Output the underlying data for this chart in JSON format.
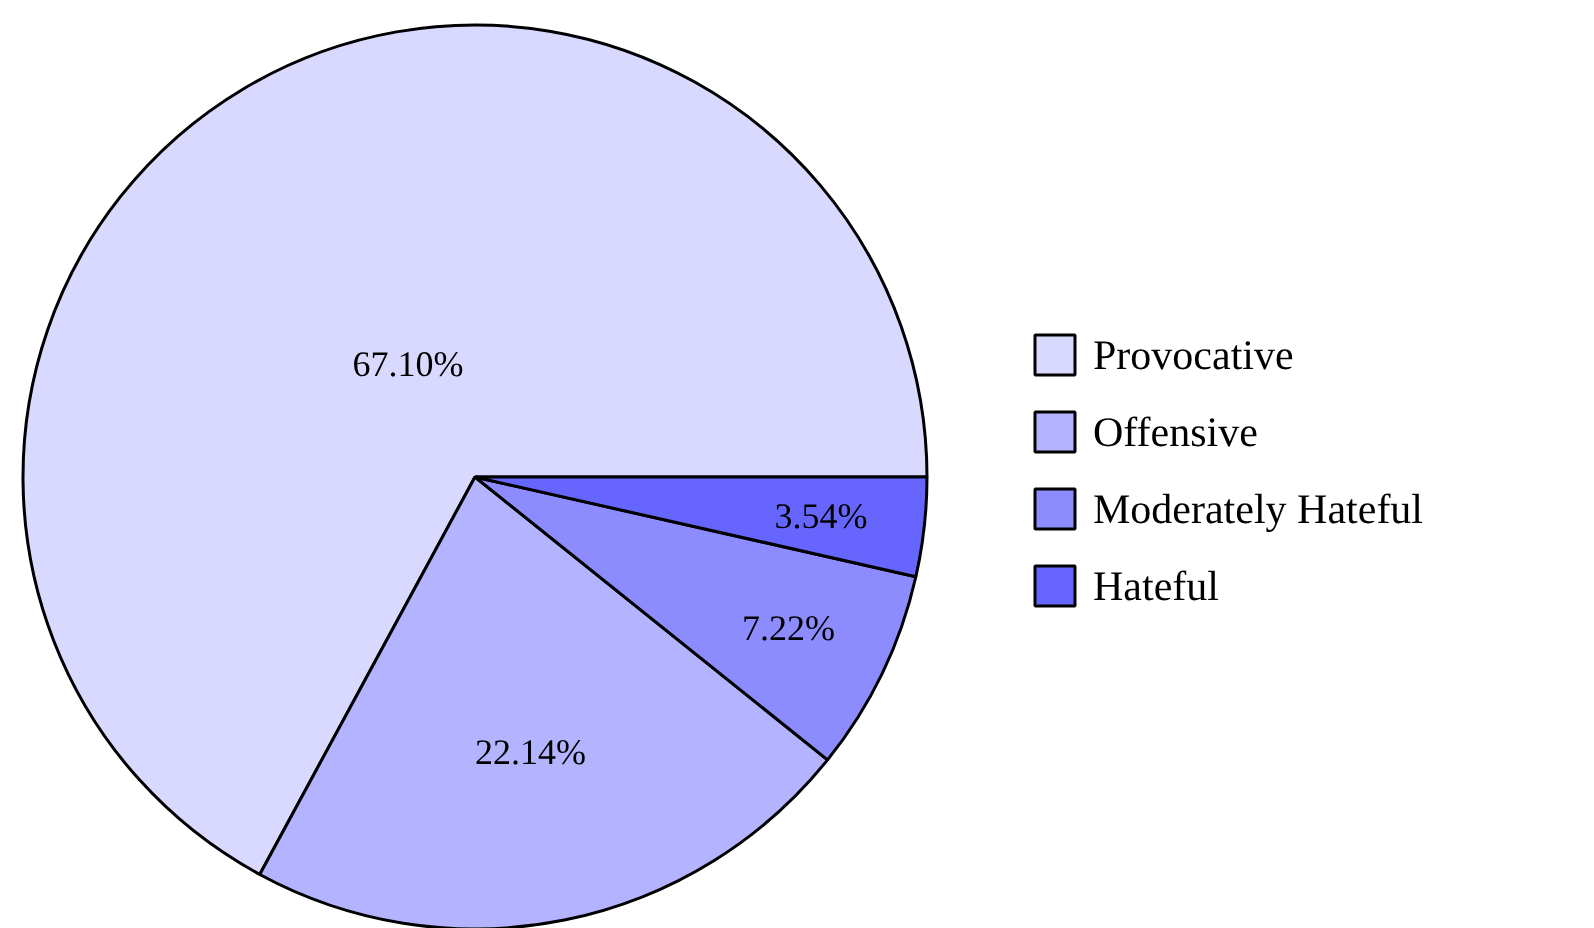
{
  "chart_data": {
    "type": "pie",
    "categories": [
      "Provocative",
      "Offensive",
      "Moderately Hateful",
      "Hateful"
    ],
    "values": [
      67.1,
      22.14,
      7.22,
      3.54
    ],
    "colors": [
      "#d9d9ff",
      "#b3b3ff",
      "#8c8cff",
      "#6666ff"
    ],
    "value_labels": [
      "67.10%",
      "22.14%",
      "7.22%",
      "3.54%"
    ],
    "legend": "right"
  }
}
